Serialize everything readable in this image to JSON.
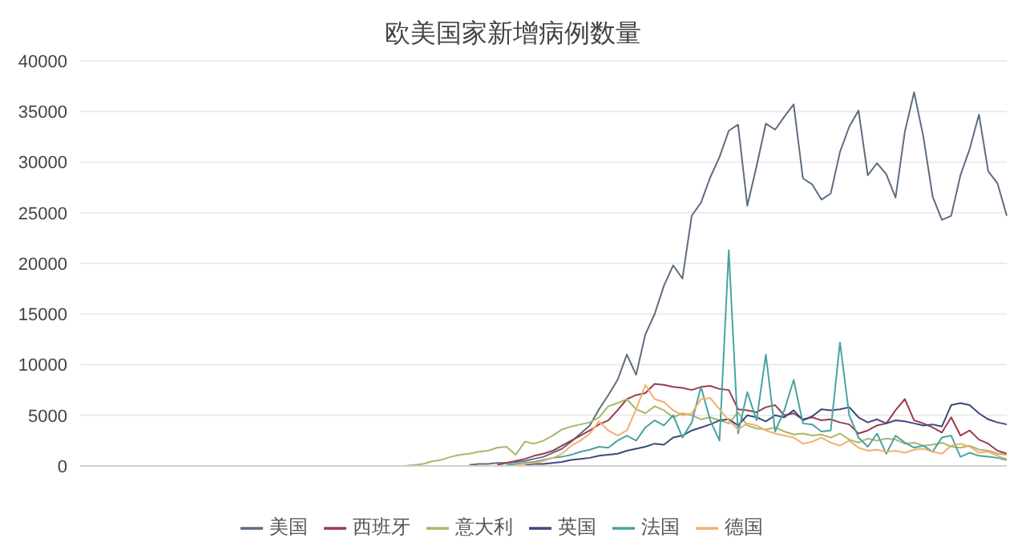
{
  "chart_data": {
    "type": "line",
    "title": "欧美国家新增病例数量",
    "categories": [
      null,
      null,
      null,
      null,
      null,
      null,
      null,
      null,
      null,
      null,
      null,
      null,
      null,
      null,
      null,
      null,
      null,
      null,
      null,
      null,
      null,
      null,
      null,
      null,
      null,
      null,
      null,
      null,
      null,
      null,
      null,
      null,
      null,
      null,
      null,
      null,
      null,
      null,
      null,
      null,
      null,
      null,
      null,
      null,
      null,
      null,
      null,
      null,
      null,
      null,
      null,
      null,
      null,
      null,
      null,
      null,
      null,
      null,
      null,
      null,
      null,
      null,
      null,
      null,
      null,
      null,
      null,
      null,
      null,
      null,
      null,
      null,
      null,
      null,
      null,
      null,
      null,
      null,
      null,
      null,
      null,
      null,
      null,
      null,
      null,
      null,
      null,
      null,
      null,
      null,
      null,
      null,
      null,
      null,
      null,
      null,
      null,
      null,
      null,
      null,
      null
    ],
    "series": [
      {
        "name": "美国",
        "color": "#5d6d80",
        "values": [
          null,
          null,
          null,
          null,
          null,
          null,
          null,
          null,
          null,
          null,
          null,
          null,
          null,
          null,
          null,
          null,
          null,
          null,
          null,
          null,
          null,
          null,
          null,
          null,
          null,
          null,
          null,
          null,
          null,
          null,
          null,
          null,
          null,
          null,
          null,
          null,
          null,
          null,
          null,
          null,
          null,
          null,
          100,
          200,
          200,
          300,
          300,
          400,
          500,
          700,
          900,
          1300,
          1700,
          2400,
          3200,
          4000,
          5600,
          7000,
          8500,
          11000,
          9000,
          13000,
          15000,
          17800,
          19800,
          18500,
          24700,
          26000,
          28500,
          30500,
          33100,
          33700,
          25700,
          29600,
          33800,
          33200,
          34500,
          35700,
          28400,
          27800,
          26300,
          26900,
          31000,
          33500,
          35100,
          28700,
          29900,
          28800,
          26500,
          33000,
          36900,
          32500,
          26600,
          24300,
          24700,
          28700,
          31300,
          34700,
          29100,
          27900,
          24700
        ]
      },
      {
        "name": "西班牙",
        "color": "#9b3b4e",
        "values": [
          null,
          null,
          null,
          null,
          null,
          null,
          null,
          null,
          null,
          null,
          null,
          null,
          null,
          null,
          null,
          null,
          null,
          null,
          null,
          null,
          null,
          null,
          null,
          null,
          null,
          null,
          null,
          null,
          null,
          null,
          null,
          null,
          null,
          null,
          null,
          null,
          null,
          null,
          null,
          null,
          null,
          null,
          null,
          null,
          null,
          100,
          300,
          500,
          700,
          1000,
          1200,
          1500,
          2000,
          2500,
          3000,
          3500,
          4100,
          4500,
          5500,
          6600,
          7000,
          7200,
          8100,
          8000,
          7800,
          7700,
          7500,
          7800,
          7900,
          7600,
          7500,
          5600,
          5500,
          5300,
          5800,
          6000,
          5000,
          5200,
          4600,
          4800,
          4500,
          4600,
          4300,
          4100,
          3200,
          3500,
          4000,
          4200,
          5500,
          6600,
          4500,
          4200,
          3800,
          3300,
          4800,
          3000,
          3500,
          2600,
          2200,
          1500,
          1200
        ]
      },
      {
        "name": "意大利",
        "color": "#a8b86a",
        "values": [
          0,
          0,
          0,
          0,
          0,
          0,
          0,
          0,
          0,
          0,
          0,
          0,
          0,
          0,
          0,
          0,
          0,
          0,
          0,
          0,
          0,
          0,
          0,
          0,
          0,
          0,
          0,
          0,
          0,
          0,
          0,
          0,
          0,
          0,
          0,
          0,
          100,
          200,
          450,
          600,
          900,
          1100,
          1200,
          1400,
          1500,
          1800,
          1900,
          1100,
          2400,
          2200,
          2500,
          3000,
          3600,
          3900,
          4100,
          4300,
          4800,
          5900,
          6200,
          6600,
          5600,
          5200,
          5900,
          5500,
          4800,
          5200,
          5000,
          4600,
          4800,
          4500,
          4200,
          5300,
          4000,
          3700,
          3600,
          3800,
          3400,
          3100,
          3200,
          3000,
          3100,
          2800,
          3200,
          2600,
          2300,
          2700,
          2500,
          2700,
          2600,
          2200,
          2300,
          2000,
          2100,
          2300,
          1900,
          1800,
          2000,
          1600,
          1500,
          1200,
          1100
        ]
      },
      {
        "name": "英国",
        "color": "#3c4a7a",
        "values": [
          null,
          null,
          null,
          null,
          null,
          null,
          null,
          null,
          null,
          null,
          null,
          null,
          null,
          null,
          null,
          null,
          null,
          null,
          null,
          null,
          null,
          null,
          null,
          null,
          null,
          null,
          null,
          null,
          null,
          null,
          null,
          null,
          null,
          null,
          null,
          null,
          null,
          null,
          null,
          null,
          null,
          null,
          null,
          null,
          null,
          null,
          null,
          null,
          100,
          200,
          200,
          300,
          400,
          600,
          700,
          800,
          1000,
          1100,
          1200,
          1500,
          1700,
          1900,
          2200,
          2100,
          2800,
          3000,
          3500,
          3800,
          4100,
          4500,
          4600,
          4000,
          5000,
          4800,
          4400,
          5000,
          4800,
          5500,
          4500,
          4900,
          5600,
          5500,
          5600,
          5800,
          4800,
          4300,
          4600,
          4200,
          4500,
          4400,
          4200,
          4000,
          4100,
          3900,
          6000,
          6200,
          6000,
          5200,
          4600,
          4300,
          4100
        ]
      },
      {
        "name": "法国",
        "color": "#4aa3a2",
        "values": [
          null,
          null,
          null,
          null,
          null,
          null,
          null,
          null,
          null,
          null,
          null,
          null,
          null,
          null,
          null,
          null,
          null,
          null,
          null,
          null,
          null,
          null,
          null,
          null,
          null,
          null,
          null,
          null,
          null,
          null,
          null,
          null,
          null,
          null,
          null,
          null,
          null,
          null,
          null,
          null,
          null,
          null,
          null,
          null,
          null,
          null,
          100,
          200,
          300,
          400,
          600,
          800,
          900,
          1100,
          1400,
          1600,
          1900,
          1800,
          2500,
          3000,
          2500,
          3800,
          4500,
          4000,
          5000,
          2800,
          4300,
          7800,
          4500,
          2500,
          21300,
          3200,
          7300,
          4500,
          11000,
          3400,
          5500,
          8500,
          4200,
          4100,
          3400,
          3500,
          12200,
          5000,
          2800,
          1900,
          3200,
          1200,
          3000,
          2300,
          1800,
          2000,
          1400,
          2800,
          3000,
          900,
          1300,
          1000,
          900,
          800,
          600
        ]
      },
      {
        "name": "德国",
        "color": "#f0b070",
        "values": [
          null,
          null,
          null,
          null,
          null,
          null,
          null,
          null,
          null,
          null,
          null,
          null,
          null,
          null,
          null,
          null,
          null,
          null,
          null,
          null,
          null,
          null,
          null,
          null,
          null,
          null,
          null,
          null,
          null,
          null,
          null,
          null,
          null,
          null,
          null,
          null,
          null,
          null,
          null,
          null,
          null,
          null,
          null,
          null,
          null,
          null,
          null,
          100,
          200,
          300,
          500,
          800,
          1200,
          2000,
          2500,
          3200,
          4400,
          3500,
          3000,
          3500,
          5600,
          8000,
          6600,
          6300,
          5500,
          5000,
          5200,
          6600,
          6700,
          5600,
          4500,
          3600,
          4200,
          4000,
          3500,
          3200,
          3000,
          2800,
          2200,
          2400,
          2800,
          2300,
          2000,
          2500,
          1800,
          1500,
          1600,
          1400,
          1500,
          1300,
          1600,
          1700,
          1400,
          1200,
          2000,
          2200,
          1900,
          1300,
          1400,
          1000,
          700
        ]
      }
    ],
    "ylim": [
      0,
      40000
    ],
    "yticks": [
      0,
      5000,
      10000,
      15000,
      20000,
      25000,
      30000,
      35000,
      40000
    ],
    "grid": "y",
    "legend": "bottom"
  }
}
